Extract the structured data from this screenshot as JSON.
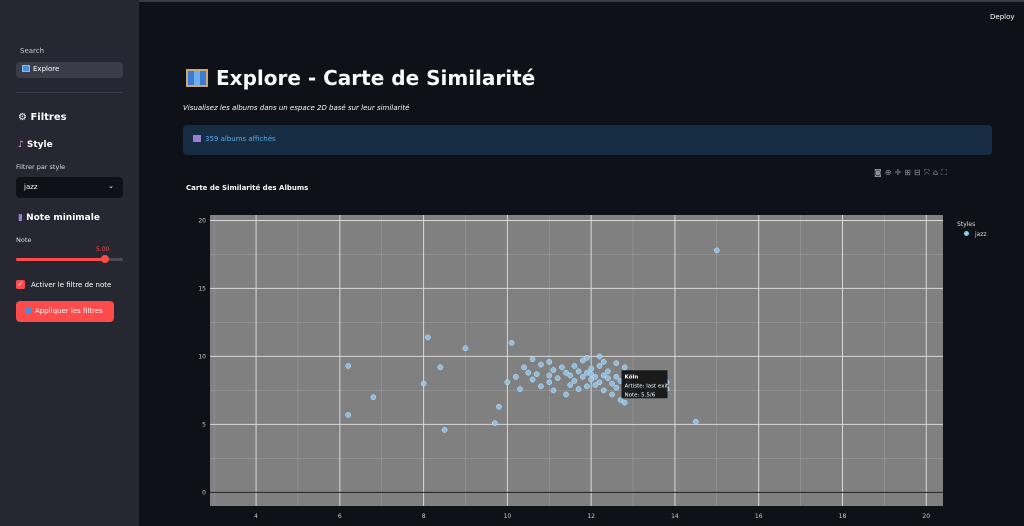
{
  "sidebar": {
    "nav_label": "Search",
    "nav_item": "Explore",
    "filters_heading": "Filtres",
    "style_heading": "Style",
    "style_label": "Filtrer par style",
    "style_value": "jazz",
    "note_heading": "Note minimale",
    "note_label": "Note",
    "note_value": "5.00",
    "note_fraction": 0.83,
    "checkbox_label": "Activer le filtre de note",
    "apply_button": "Appliquer les filtres"
  },
  "header": {
    "deploy": "Deploy"
  },
  "main": {
    "title": "Explore - Carte de Similarité",
    "subtitle": "Visualisez les albums dans un espace 2D basé sur leur similarité",
    "info": "359 albums affichés",
    "chart_title": "Carte de Similarité des Albums"
  },
  "chart_data": {
    "type": "scatter",
    "title": "Carte de Similarité des Albums",
    "xlim": [
      2.9,
      20.4
    ],
    "ylim": [
      -1,
      20.4
    ],
    "xticks": [
      4,
      6,
      8,
      10,
      12,
      14,
      16,
      18,
      20
    ],
    "yticks": [
      0,
      5,
      10,
      15,
      20
    ],
    "grid": true,
    "legend_title": "Styles",
    "legend_position": "right",
    "series": [
      {
        "name": "jazz",
        "color": "#8ec7ee",
        "points": [
          [
            15,
            17.8
          ],
          [
            6.2,
            9.3
          ],
          [
            6.2,
            5.7
          ],
          [
            6.8,
            7
          ],
          [
            8,
            8
          ],
          [
            8.1,
            11.4
          ],
          [
            8.4,
            9.2
          ],
          [
            8.5,
            4.6
          ],
          [
            9,
            10.6
          ],
          [
            9.7,
            5.1
          ],
          [
            9.8,
            6.3
          ],
          [
            10.1,
            11
          ],
          [
            10,
            8.1
          ],
          [
            10.2,
            8.5
          ],
          [
            10.3,
            7.6
          ],
          [
            10.4,
            9.2
          ],
          [
            10.5,
            8.8
          ],
          [
            10.6,
            8.3
          ],
          [
            10.6,
            9.8
          ],
          [
            10.7,
            8.7
          ],
          [
            10.8,
            7.8
          ],
          [
            10.8,
            9.4
          ],
          [
            11,
            8.1
          ],
          [
            11,
            9.6
          ],
          [
            11,
            8.6
          ],
          [
            11.1,
            9
          ],
          [
            11.1,
            7.5
          ],
          [
            11.2,
            8.4
          ],
          [
            11.3,
            9.2
          ],
          [
            11.4,
            8.8
          ],
          [
            11.5,
            7.9
          ],
          [
            11.5,
            8.6
          ],
          [
            11.6,
            9.3
          ],
          [
            11.6,
            8.2
          ],
          [
            11.7,
            8.9
          ],
          [
            11.8,
            8.5
          ],
          [
            11.8,
            9.7
          ],
          [
            11.9,
            7.8
          ],
          [
            11.9,
            8.8
          ],
          [
            12,
            8.3
          ],
          [
            12,
            9.1
          ],
          [
            12,
            8.7
          ],
          [
            12.1,
            7.9
          ],
          [
            12.1,
            8.5
          ],
          [
            12.2,
            8.1
          ],
          [
            12.2,
            9.3
          ],
          [
            12.3,
            8.6
          ],
          [
            12.3,
            7.5
          ],
          [
            12.4,
            8.4
          ],
          [
            12.4,
            8.9
          ],
          [
            12.5,
            7.2
          ],
          [
            12.5,
            8
          ],
          [
            12.6,
            7.7
          ],
          [
            12.6,
            8.5
          ],
          [
            12.7,
            8.2
          ],
          [
            12.7,
            6.8
          ],
          [
            12.8,
            7.6
          ],
          [
            12.8,
            6.6
          ],
          [
            12.9,
            7.3
          ],
          [
            12.9,
            8.1
          ],
          [
            13,
            7.5
          ],
          [
            13.1,
            7.9
          ],
          [
            13.2,
            7.2
          ],
          [
            13.3,
            7.8
          ],
          [
            13.4,
            7.4
          ],
          [
            13.5,
            7.6
          ],
          [
            13.7,
            7.8
          ],
          [
            13.8,
            7.6
          ],
          [
            13.8,
            8.1
          ],
          [
            12.6,
            9.5
          ],
          [
            12.2,
            10
          ],
          [
            11.9,
            9.9
          ],
          [
            14.5,
            5.2
          ],
          [
            11.4,
            7.2
          ],
          [
            11.7,
            7.6
          ],
          [
            12.8,
            9.2
          ],
          [
            13,
            8.6
          ],
          [
            12.3,
            9.6
          ]
        ]
      }
    ],
    "tooltip": {
      "title": "Köln",
      "artiste": "Artiste: last exit",
      "note": "Note: 5.5/6"
    }
  }
}
